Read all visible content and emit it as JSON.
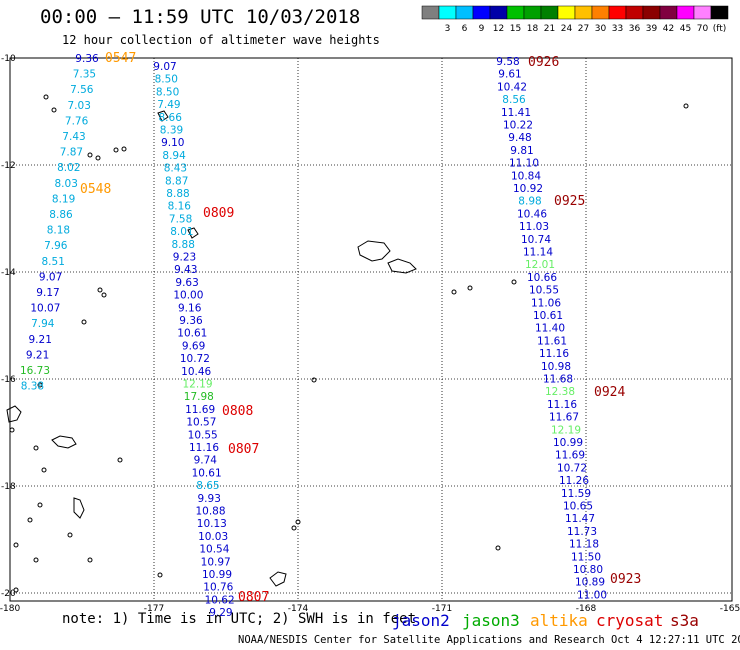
{
  "title": "00:00 – 11:59 UTC 10/03/2018",
  "subtitle": "12 hour collection of altimeter wave heights",
  "colorbar": {
    "unit": "(ft)",
    "colors": [
      "#7f7f7f",
      "#00ffff",
      "#00bfff",
      "#0000ff",
      "#0000a8",
      "#00c000",
      "#00a000",
      "#008000",
      "#ffff00",
      "#ffc000",
      "#ff8000",
      "#ff0000",
      "#c00000",
      "#8b0000",
      "#800040",
      "#ff00ff",
      "#ff80ff",
      "#000000"
    ],
    "labels": [
      "3",
      "6",
      "9",
      "12",
      "15",
      "18",
      "21",
      "24",
      "27",
      "30",
      "33",
      "36",
      "39",
      "42",
      "45",
      "70"
    ]
  },
  "map": {
    "lat_labels": [
      "-10",
      "-12",
      "-14",
      "-16",
      "-18",
      "-20"
    ],
    "lon_labels": [
      "-180",
      "-177",
      "-174",
      "-171",
      "-168",
      "-165"
    ],
    "grid": "dotted"
  },
  "passes": [
    {
      "satellite": "altika",
      "time": "0547"
    },
    {
      "satellite": "altika",
      "time": "0548"
    },
    {
      "satellite": "cryosat",
      "time": "0809"
    },
    {
      "satellite": "cryosat",
      "time": "0808"
    },
    {
      "satellite": "cryosat",
      "time": "0807"
    },
    {
      "satellite": "cryosat",
      "time": "0807"
    },
    {
      "satellite": "s3a",
      "time": "0926"
    },
    {
      "satellite": "s3a",
      "time": "0925"
    },
    {
      "satellite": "s3a",
      "time": "0924"
    },
    {
      "satellite": "s3a",
      "time": "0923"
    }
  ],
  "tracks": [
    {
      "name": "track-a",
      "points": [
        {
          "v": "9.36",
          "c": "#0000cc"
        },
        {
          "v": "7.35",
          "c": "#00aadd"
        },
        {
          "v": "7.56",
          "c": "#00aadd"
        },
        {
          "v": "7.03",
          "c": "#00aadd"
        },
        {
          "v": "7.76",
          "c": "#00aadd"
        },
        {
          "v": "7.43",
          "c": "#00aadd"
        },
        {
          "v": "7.87",
          "c": "#00aadd"
        },
        {
          "v": "8.02",
          "c": "#00aadd"
        },
        {
          "v": "8.03",
          "c": "#00aadd"
        },
        {
          "v": "8.19",
          "c": "#00aadd"
        },
        {
          "v": "8.86",
          "c": "#00aadd"
        },
        {
          "v": "8.18",
          "c": "#00aadd"
        },
        {
          "v": "7.96",
          "c": "#00aadd"
        },
        {
          "v": "8.51",
          "c": "#00aadd"
        },
        {
          "v": "9.07",
          "c": "#0000cc"
        },
        {
          "v": "9.17",
          "c": "#0000cc"
        },
        {
          "v": "10.07",
          "c": "#0000cc"
        },
        {
          "v": "7.94",
          "c": "#00aadd"
        },
        {
          "v": "9.21",
          "c": "#0000cc"
        },
        {
          "v": "9.21",
          "c": "#0000cc"
        },
        {
          "v": "16.73",
          "c": "#22bb22"
        },
        {
          "v": "8.38",
          "c": "#00aadd"
        }
      ]
    },
    {
      "name": "track-b",
      "points": [
        {
          "v": "9.07",
          "c": "#0000cc"
        },
        {
          "v": "8.50",
          "c": "#00aadd"
        },
        {
          "v": "8.50",
          "c": "#00aadd"
        },
        {
          "v": "7.49",
          "c": "#00aadd"
        },
        {
          "v": "8.66",
          "c": "#00aadd"
        },
        {
          "v": "8.39",
          "c": "#00aadd"
        },
        {
          "v": "9.10",
          "c": "#0000cc"
        },
        {
          "v": "8.94",
          "c": "#00aadd"
        },
        {
          "v": "8.43",
          "c": "#00aadd"
        },
        {
          "v": "8.87",
          "c": "#00aadd"
        },
        {
          "v": "8.88",
          "c": "#00aadd"
        },
        {
          "v": "8.16",
          "c": "#00aadd"
        },
        {
          "v": "7.58",
          "c": "#00aadd"
        },
        {
          "v": "8.01",
          "c": "#00aadd"
        },
        {
          "v": "8.88",
          "c": "#00aadd"
        },
        {
          "v": "9.23",
          "c": "#0000cc"
        },
        {
          "v": "9.43",
          "c": "#0000cc"
        },
        {
          "v": "9.63",
          "c": "#0000cc"
        },
        {
          "v": "10.00",
          "c": "#0000cc"
        },
        {
          "v": "9.16",
          "c": "#0000cc"
        },
        {
          "v": "9.36",
          "c": "#0000cc"
        },
        {
          "v": "10.61",
          "c": "#0000cc"
        },
        {
          "v": "9.69",
          "c": "#0000cc"
        },
        {
          "v": "10.72",
          "c": "#0000cc"
        },
        {
          "v": "10.46",
          "c": "#0000cc"
        },
        {
          "v": "12.19",
          "c": "#66ee66"
        },
        {
          "v": "17.98",
          "c": "#22bb22"
        },
        {
          "v": "11.69",
          "c": "#0000cc"
        },
        {
          "v": "10.57",
          "c": "#0000cc"
        },
        {
          "v": "10.55",
          "c": "#0000cc"
        },
        {
          "v": "11.16",
          "c": "#0000cc"
        },
        {
          "v": "9.74",
          "c": "#0000cc"
        },
        {
          "v": "10.61",
          "c": "#0000cc"
        },
        {
          "v": "8.65",
          "c": "#00aadd"
        },
        {
          "v": "9.93",
          "c": "#0000cc"
        },
        {
          "v": "10.88",
          "c": "#0000cc"
        },
        {
          "v": "10.13",
          "c": "#0000cc"
        },
        {
          "v": "10.03",
          "c": "#0000cc"
        },
        {
          "v": "10.54",
          "c": "#0000cc"
        },
        {
          "v": "10.97",
          "c": "#0000cc"
        },
        {
          "v": "10.99",
          "c": "#0000cc"
        },
        {
          "v": "10.76",
          "c": "#0000cc"
        },
        {
          "v": "10.62",
          "c": "#0000cc"
        },
        {
          "v": "9.29",
          "c": "#0000cc"
        }
      ]
    },
    {
      "name": "track-c",
      "points": [
        {
          "v": "9.58",
          "c": "#0000cc"
        },
        {
          "v": "9.61",
          "c": "#0000cc"
        },
        {
          "v": "10.42",
          "c": "#0000cc"
        },
        {
          "v": "8.56",
          "c": "#00aadd"
        },
        {
          "v": "11.41",
          "c": "#0000cc"
        },
        {
          "v": "10.22",
          "c": "#0000cc"
        },
        {
          "v": "9.48",
          "c": "#0000cc"
        },
        {
          "v": "9.81",
          "c": "#0000cc"
        },
        {
          "v": "11.10",
          "c": "#0000cc"
        },
        {
          "v": "10.84",
          "c": "#0000cc"
        },
        {
          "v": "10.92",
          "c": "#0000cc"
        },
        {
          "v": "8.98",
          "c": "#00aadd"
        },
        {
          "v": "10.46",
          "c": "#0000cc"
        },
        {
          "v": "11.03",
          "c": "#0000cc"
        },
        {
          "v": "10.74",
          "c": "#0000cc"
        },
        {
          "v": "11.14",
          "c": "#0000cc"
        },
        {
          "v": "12.01",
          "c": "#66ee66"
        },
        {
          "v": "10.66",
          "c": "#0000cc"
        },
        {
          "v": "10.55",
          "c": "#0000cc"
        },
        {
          "v": "11.06",
          "c": "#0000cc"
        },
        {
          "v": "10.61",
          "c": "#0000cc"
        },
        {
          "v": "11.40",
          "c": "#0000cc"
        },
        {
          "v": "11.61",
          "c": "#0000cc"
        },
        {
          "v": "11.16",
          "c": "#0000cc"
        },
        {
          "v": "10.98",
          "c": "#0000cc"
        },
        {
          "v": "11.68",
          "c": "#0000cc"
        },
        {
          "v": "12.38",
          "c": "#66ee66"
        },
        {
          "v": "11.16",
          "c": "#0000cc"
        },
        {
          "v": "11.67",
          "c": "#0000cc"
        },
        {
          "v": "12.19",
          "c": "#66ee66"
        },
        {
          "v": "10.99",
          "c": "#0000cc"
        },
        {
          "v": "11.69",
          "c": "#0000cc"
        },
        {
          "v": "10.72",
          "c": "#0000cc"
        },
        {
          "v": "11.26",
          "c": "#0000cc"
        },
        {
          "v": "11.59",
          "c": "#0000cc"
        },
        {
          "v": "10.65",
          "c": "#0000cc"
        },
        {
          "v": "11.47",
          "c": "#0000cc"
        },
        {
          "v": "11.73",
          "c": "#0000cc"
        },
        {
          "v": "11.18",
          "c": "#0000cc"
        },
        {
          "v": "11.50",
          "c": "#0000cc"
        },
        {
          "v": "10.80",
          "c": "#0000cc"
        },
        {
          "v": "10.89",
          "c": "#0000cc"
        },
        {
          "v": "11.00",
          "c": "#0000cc"
        }
      ]
    }
  ],
  "note": "note: 1) Time is in UTC; 2) SWH is in feet",
  "legend": [
    {
      "name": "jason2",
      "color": "#0000cc"
    },
    {
      "name": "jason3",
      "color": "#00aa00"
    },
    {
      "name": "altika",
      "color": "#ff9900"
    },
    {
      "name": "cryosat",
      "color": "#dd0000"
    },
    {
      "name": "s3a",
      "color": "#990000"
    }
  ],
  "footer": "NOAA/NESDIS Center for Satellite Applications and Research   Oct  4 12:27:11 UTC 2018"
}
